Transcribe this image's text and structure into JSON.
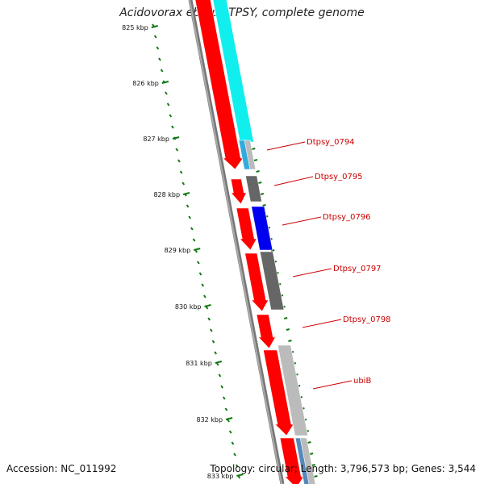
{
  "title": "Acidovorax ebreus TPSY, complete genome",
  "accession": "Accession: NC_011992",
  "topology": "Topology: circular; Length: 3,796,573 bp; Genes: 3,544",
  "colors": {
    "ruler": "#117711",
    "backbone": "#777777",
    "forward": "#ff0000",
    "cyan": "#11eeee",
    "light_blue": "#33aadd",
    "steel_blue": "#5588bb",
    "dark_gray": "#666666",
    "light_gray": "#bbbbbb",
    "blue": "#0000ee",
    "label": "#cc0000"
  },
  "ruler": {
    "ticks": [
      "825 kbp",
      "826 kbp",
      "827 kbp",
      "828 kbp",
      "829 kbp",
      "830 kbp",
      "831 kbp",
      "832 kbp",
      "833 kbp"
    ]
  },
  "gene_labels": [
    "Dtpsy_0794",
    "Dtpsy_0795",
    "Dtpsy_0796",
    "Dtpsy_0797",
    "Dtpsy_0798",
    "ubiB"
  ]
}
